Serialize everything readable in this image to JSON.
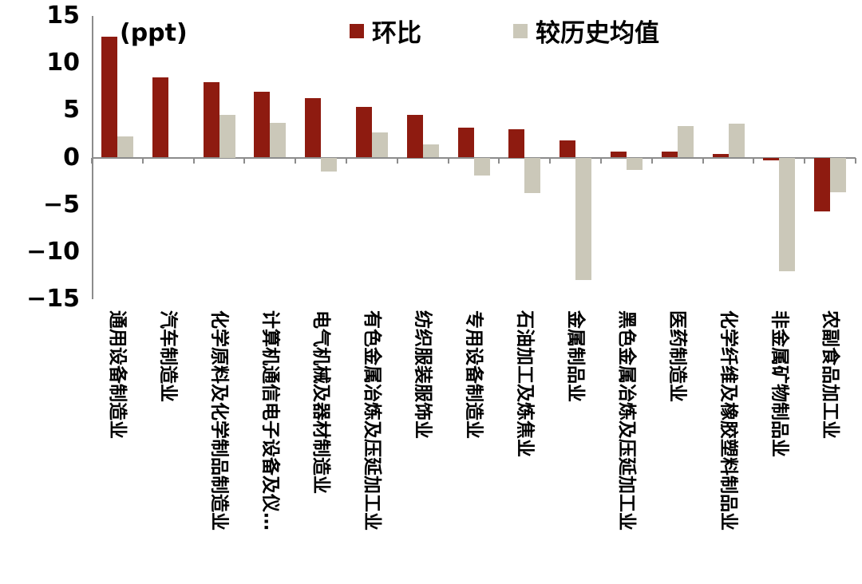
{
  "chart_data": {
    "type": "bar",
    "title": "",
    "unit_label": "(ppt)",
    "legend_position": "top",
    "grid": false,
    "ylim": [
      -15,
      15
    ],
    "yticks": [
      15,
      10,
      5,
      0,
      -5,
      -10,
      -15
    ],
    "categories": [
      "通用设备制造业",
      "汽车制造业",
      "化学原料及化学制品制造业",
      "计算机通信电子设备及仪…",
      "电气机械及器材制造业",
      "有色金属冶炼及压延加工业",
      "纺织服装服饰业",
      "专用设备制造业",
      "石油加工及炼焦业",
      "金属制品业",
      "黑色金属冶炼及压延加工业",
      "医药制造业",
      "化学纤维及橡胶塑料制品业",
      "非金属矿物制品业",
      "农副食品加工业"
    ],
    "series": [
      {
        "name": "环比",
        "color": "#8E1B10",
        "values": [
          12.8,
          8.5,
          8.0,
          7.0,
          6.3,
          5.4,
          4.5,
          3.2,
          3.0,
          1.8,
          0.6,
          0.6,
          0.4,
          -0.3,
          -5.7
        ]
      },
      {
        "name": "较历史均值",
        "color": "#CBC8B9",
        "values": [
          2.2,
          0,
          4.5,
          3.7,
          -1.5,
          2.7,
          1.4,
          -1.9,
          -3.8,
          -13.0,
          -1.3,
          3.3,
          3.6,
          -12.0,
          -3.7
        ]
      }
    ]
  },
  "colors": {
    "axis": "#8c8c8c",
    "text": "#000000",
    "background": "#ffffff"
  }
}
